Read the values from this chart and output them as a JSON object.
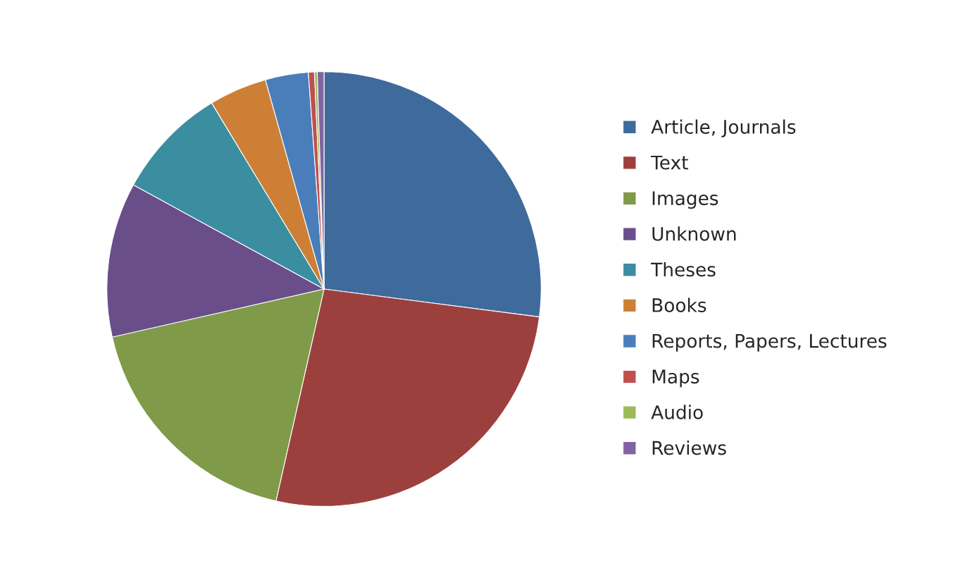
{
  "chart_data": {
    "type": "pie",
    "categories": [
      "Article, Journals",
      "Text",
      "Images",
      "Unknown",
      "Theses",
      "Books",
      "Reports, Papers, Lectures",
      "Maps",
      "Audio",
      "Reviews"
    ],
    "values": [
      27.05,
      26.5,
      17.9,
      11.5,
      8.4,
      4.3,
      3.2,
      0.45,
      0.2,
      0.5
    ],
    "colors": [
      "#3f6a9c",
      "#9c403e",
      "#7f9a48",
      "#6a4e8a",
      "#3b8da0",
      "#cd7f35",
      "#4a7ebb",
      "#c0504d",
      "#9bbb59",
      "#8064a2"
    ],
    "legend": "right"
  }
}
